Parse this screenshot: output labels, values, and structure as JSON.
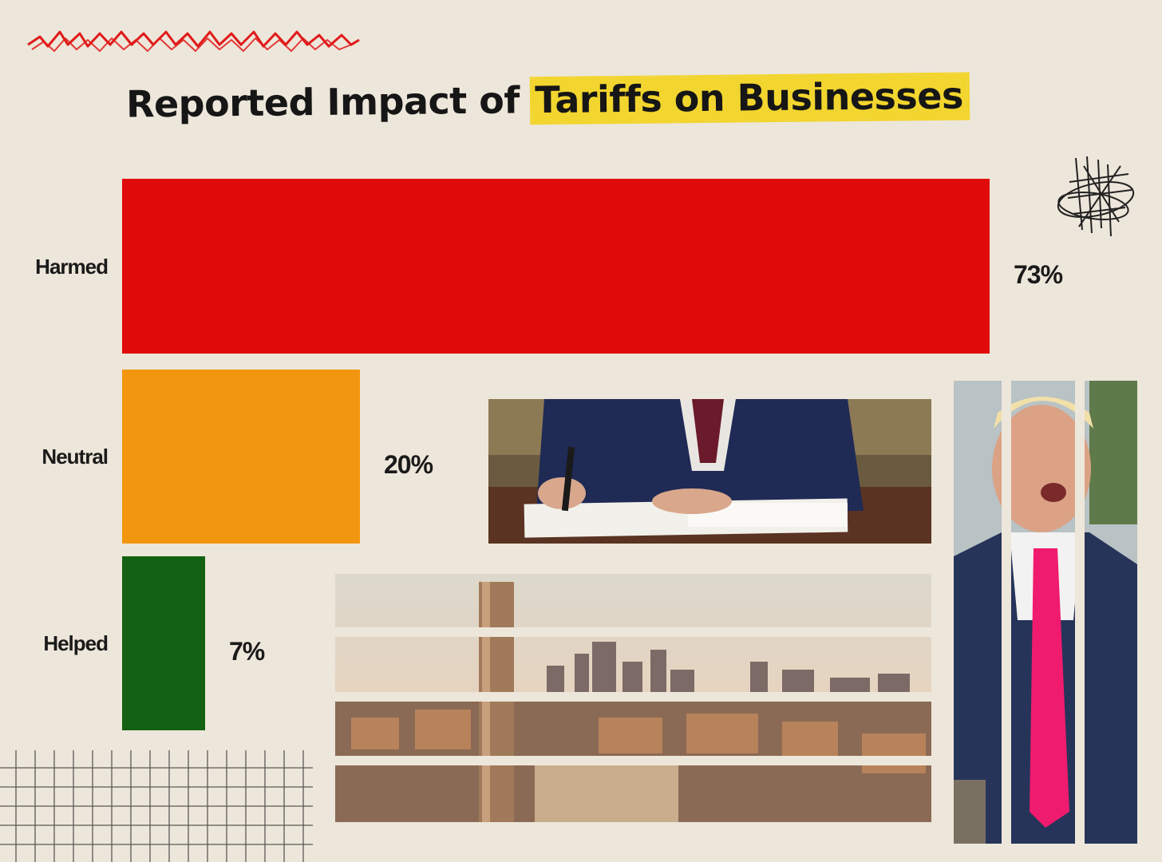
{
  "chart_data": {
    "type": "bar",
    "orientation": "horizontal",
    "title": "Reported Impact of Tariffs on Businesses",
    "title_plain": "Reported Impact of ",
    "title_highlight": "Tariffs on Businesses",
    "categories": [
      "Harmed",
      "Neutral",
      "Helped"
    ],
    "values": [
      73,
      20,
      7
    ],
    "value_labels": [
      "73%",
      "20%",
      "7%"
    ],
    "colors": [
      "#e00b0b",
      "#f2960f",
      "#136112"
    ],
    "xlim": [
      0,
      73
    ],
    "grid": false,
    "legend": "none"
  },
  "colors": {
    "background": "#ede6da",
    "title_highlight": "#f2d52e",
    "scribble": "#e01a1a"
  },
  "decorations": {
    "photos": [
      "desk-signing-photo",
      "city-skyline-photo",
      "speaker-portrait-photo"
    ]
  }
}
